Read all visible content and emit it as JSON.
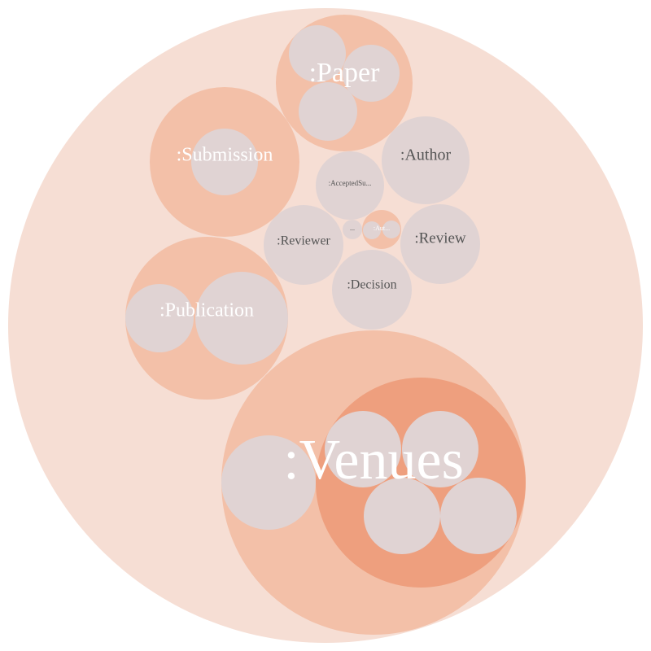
{
  "colors": {
    "level0": "#f6ded4",
    "level1": "#f3c0a8",
    "level2": "#ee9f7e",
    "leaf": "#e0d3d3",
    "label_light": "#ffffff",
    "label_dark": "#555555"
  },
  "labels": {
    "paper": ":Paper",
    "submission": ":Submission",
    "author": ":Author",
    "accepted_submission": ":AcceptedSu...",
    "ellipsis": "...",
    "aut": ":Aut...",
    "reviewer": ":Reviewer",
    "review": ":Review",
    "decision": ":Decision",
    "publication": ":Publication",
    "venues": ":Venues"
  }
}
